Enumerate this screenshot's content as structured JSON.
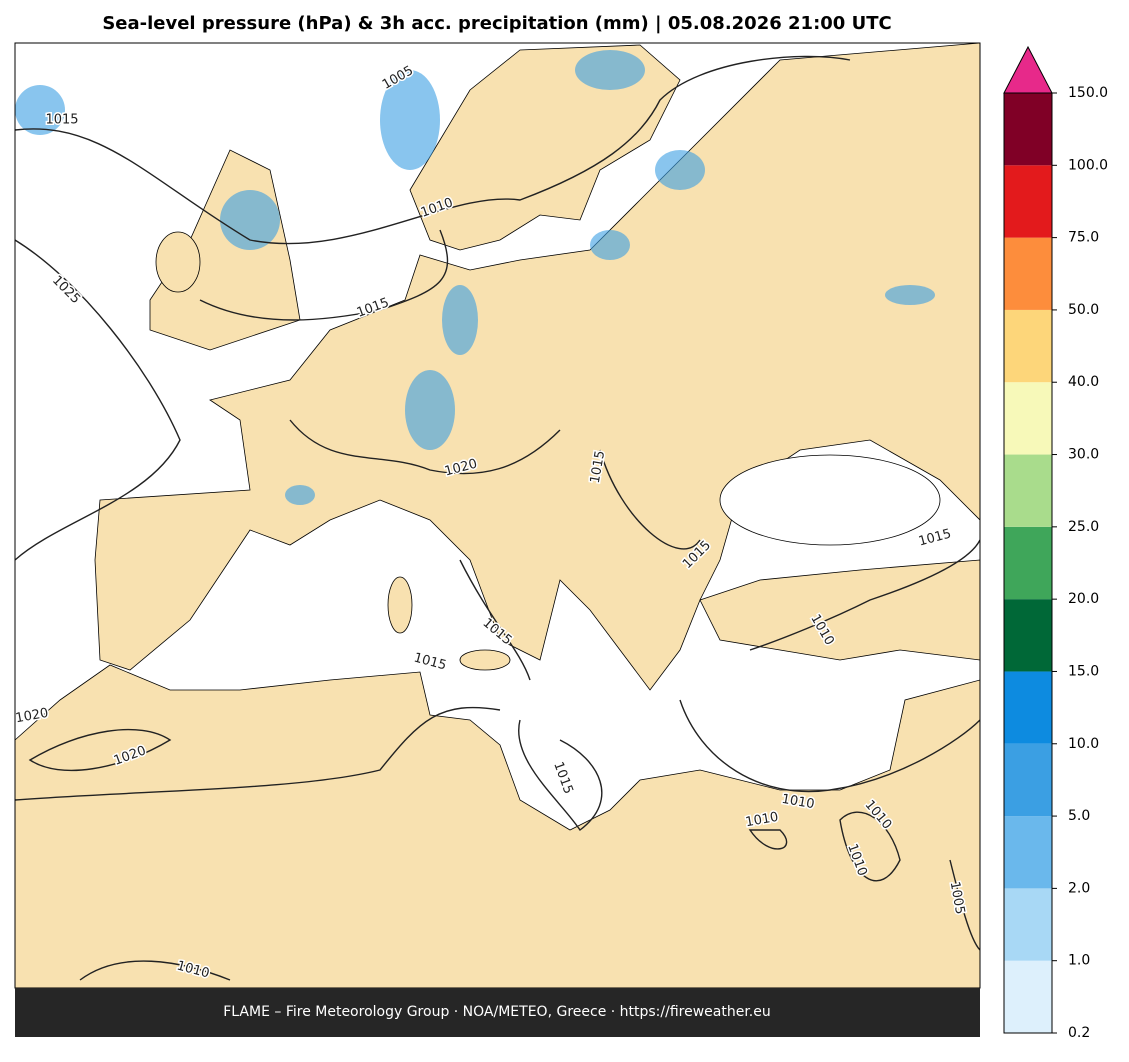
{
  "title": "Sea-level pressure (hPa) & 3h acc. precipitation (mm)  |  05.08.2026 21:00 UTC",
  "footer": "FLAME – Fire Meteorology Group · NOA/METEO, Greece · https://fireweather.eu",
  "isobar_labels": [
    1015,
    1005,
    1010,
    1025,
    1015,
    1020,
    1015,
    1015,
    1015,
    1010,
    1015,
    1015,
    1020,
    1020,
    1015,
    1010,
    1010,
    1010,
    1010,
    1005,
    1010
  ],
  "colorbar": {
    "ticks": [
      0.2,
      {
        "value": 1,
        "label": "1.0"
      },
      {
        "value": 2,
        "label": "2.0"
      },
      {
        "value": 5,
        "label": "5.0"
      },
      {
        "value": 10,
        "label": "10.0"
      },
      {
        "value": 15,
        "label": "15.0"
      },
      {
        "value": 20,
        "label": "20.0"
      },
      {
        "value": 25,
        "label": "25.0"
      },
      {
        "value": 30,
        "label": "30.0"
      },
      {
        "value": 40,
        "label": "40.0"
      },
      {
        "value": 50,
        "label": "50.0"
      },
      {
        "value": 75,
        "label": "75.0"
      },
      {
        "value": 100,
        "label": "100.0"
      },
      {
        "value": 150,
        "label": "150.0"
      }
    ],
    "colors": [
      "#ddf0fc",
      "#a8d8f5",
      "#6ab8ec",
      "#3b9fe3",
      "#0d8be0",
      "#006837",
      "#3fa65a",
      "#a9dc8c",
      "#f7f9b9",
      "#fdd67a",
      "#fd8d3c",
      "#e31a1c",
      "#800026"
    ],
    "extend_color": "#e7298a"
  }
}
